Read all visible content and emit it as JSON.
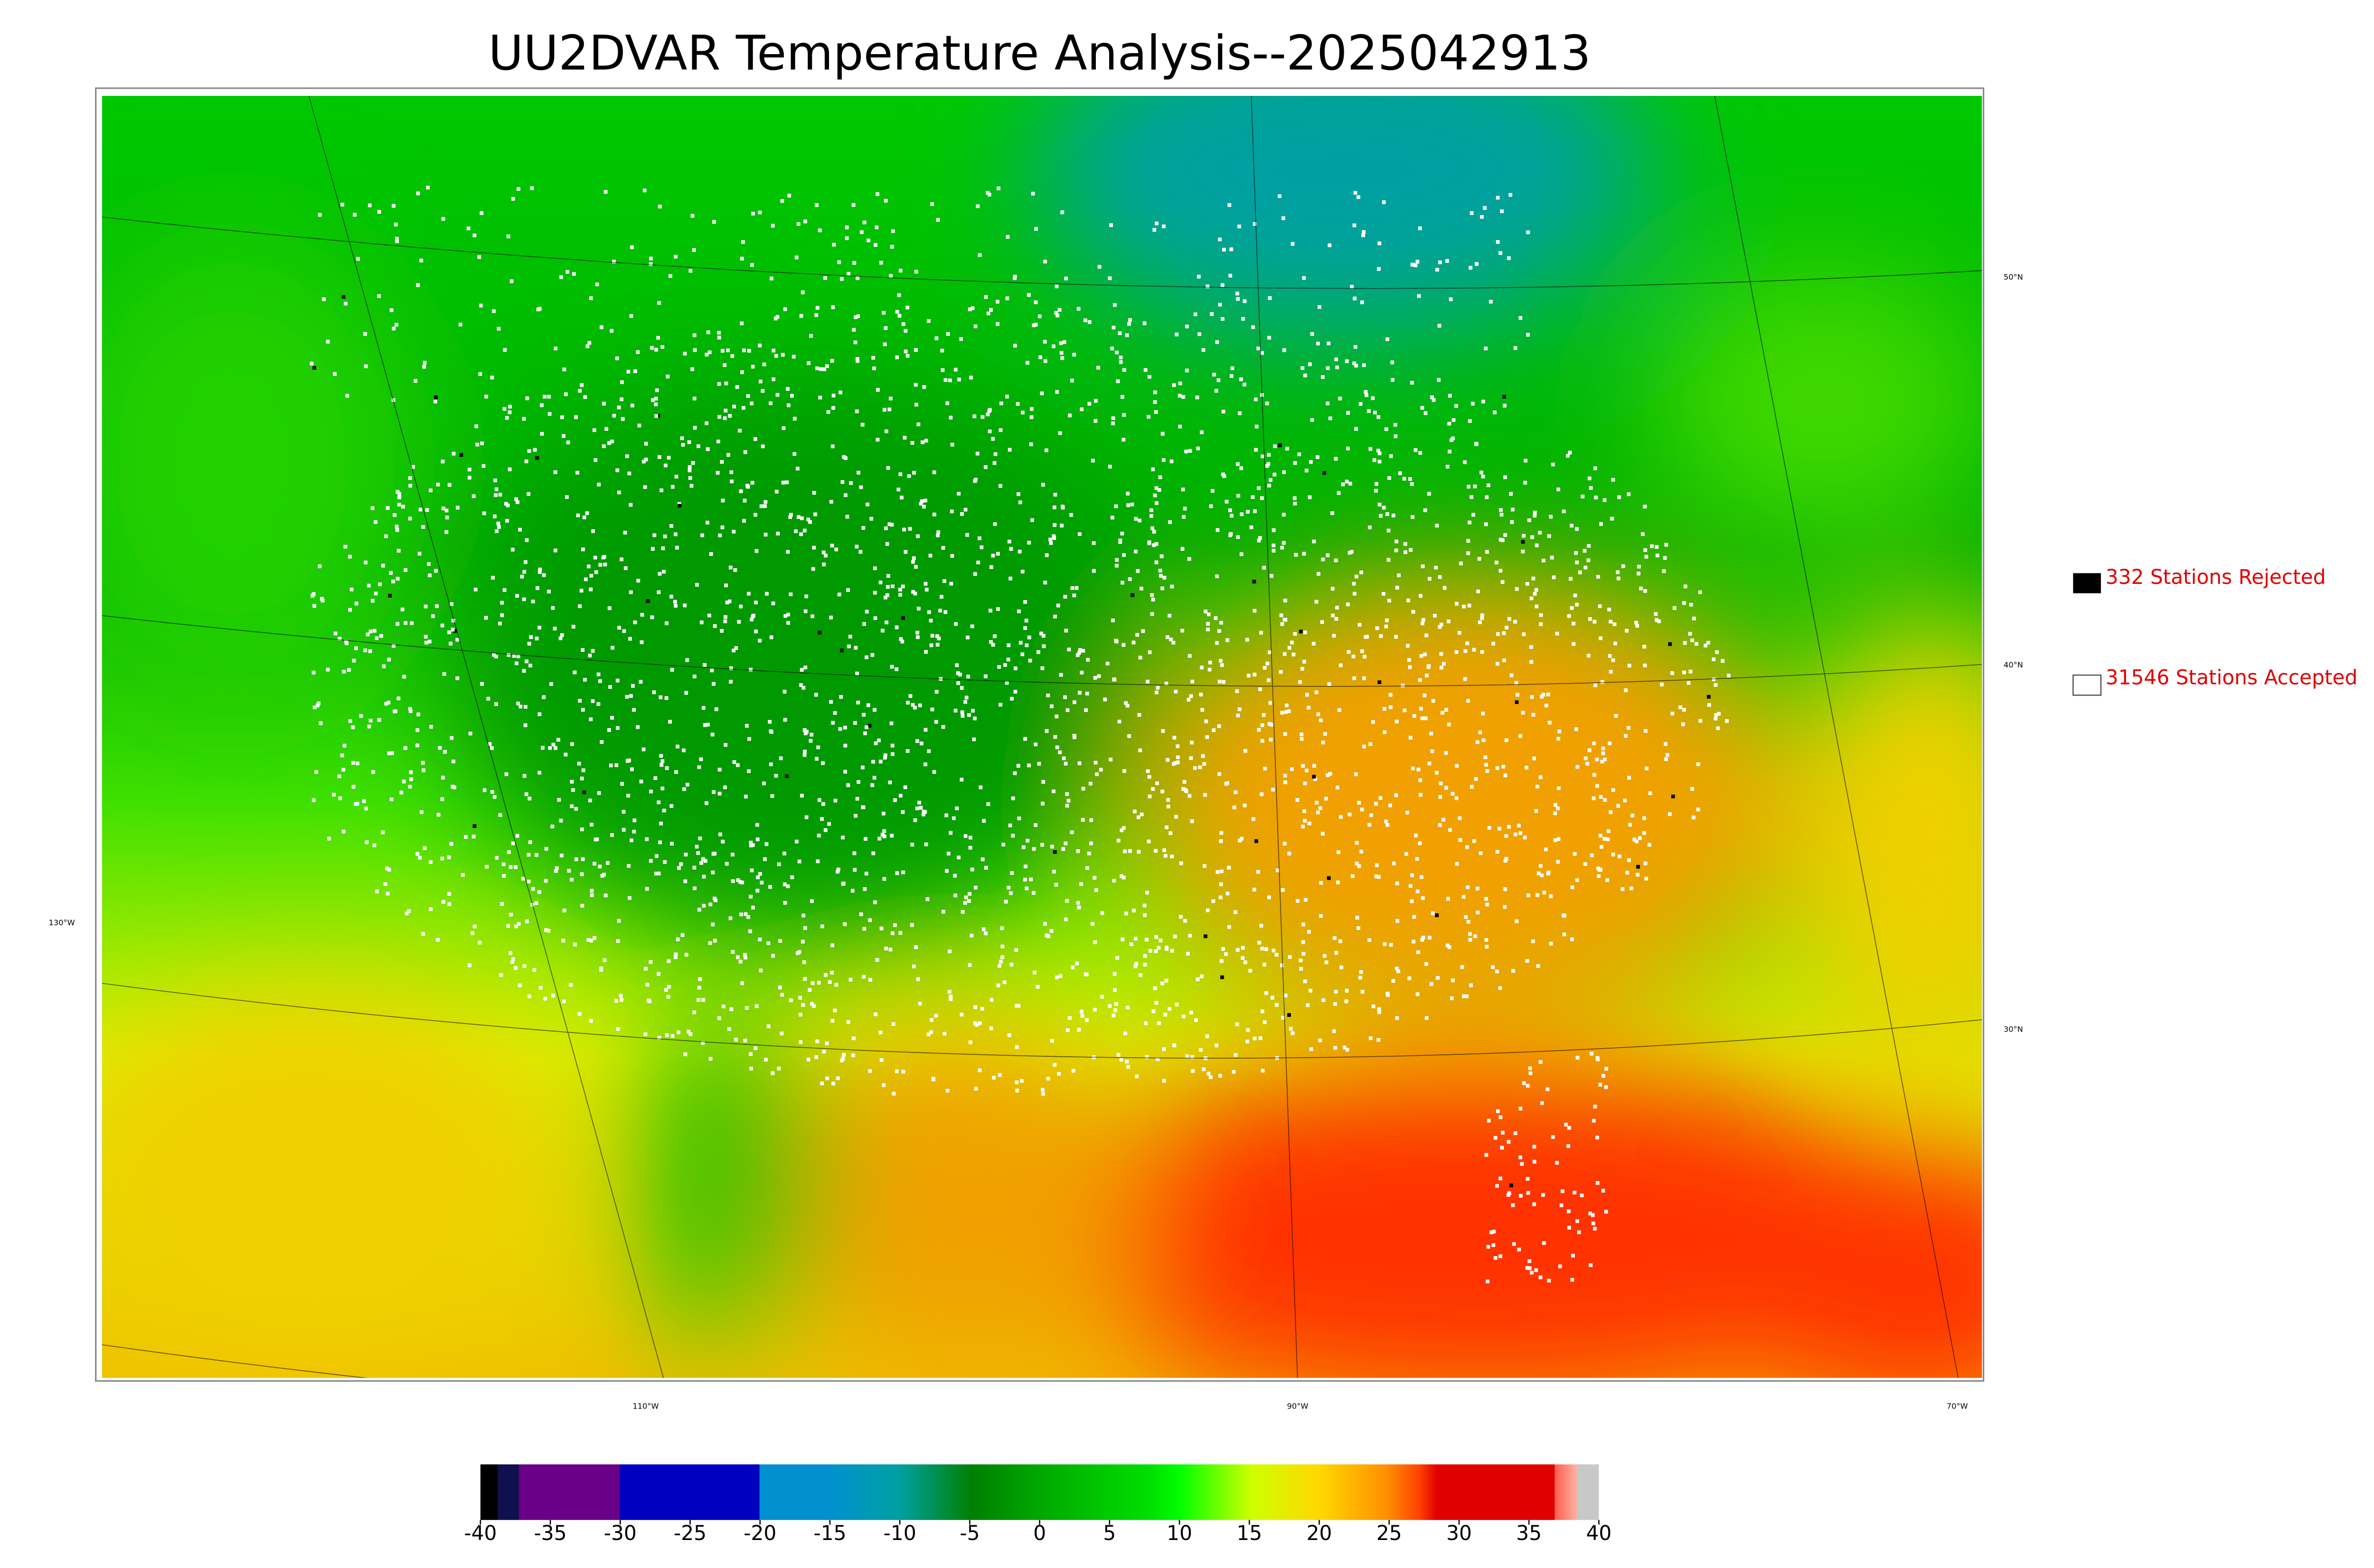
{
  "title": "UU2DVAR Temperature Analysis--2025042913",
  "legend": {
    "rejected": "332 Stations Rejected",
    "accepted": "31546 Stations Accepted"
  },
  "map": {
    "lat_labels": [
      "50°N",
      "40°N",
      "30°N"
    ],
    "lon_labels": [
      "130°W",
      "110°W",
      "90°W",
      "70°W"
    ]
  },
  "colorbar": {
    "ticks": [
      -40,
      -35,
      -30,
      -25,
      -20,
      -15,
      -10,
      -5,
      0,
      5,
      10,
      15,
      20,
      25,
      30,
      35,
      40
    ]
  }
}
